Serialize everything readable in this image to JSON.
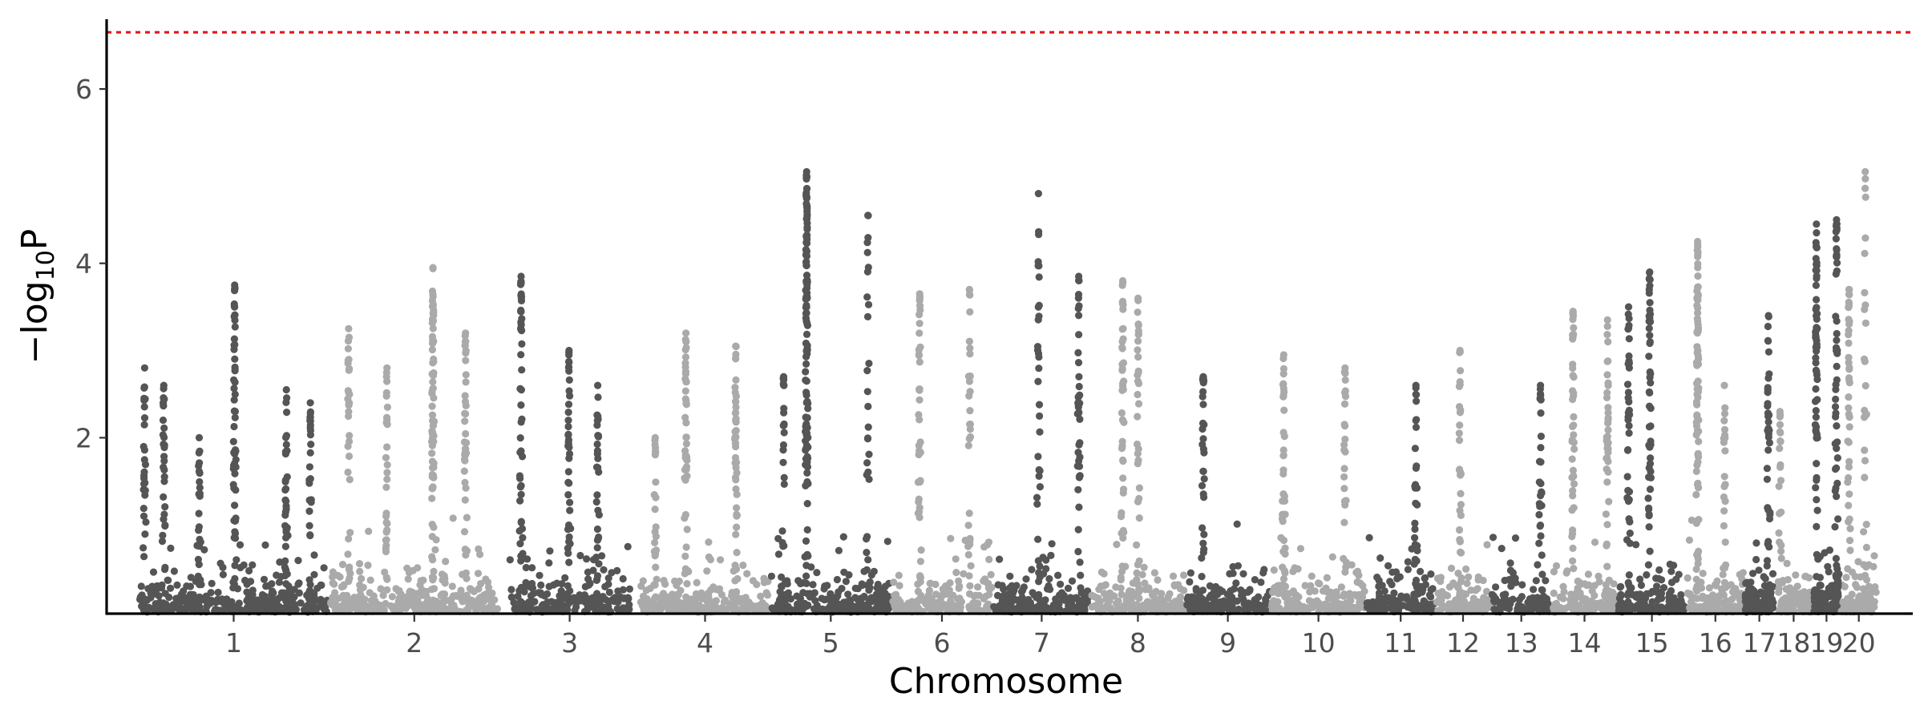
{
  "chart_data": {
    "type": "scatter",
    "subtype": "manhattan",
    "title": "",
    "xlabel": "Chromosome",
    "ylabel_parts": {
      "prefix": "−log",
      "sub": "10",
      "suffix": "P"
    },
    "ylim": [
      0,
      6.8
    ],
    "yticks": [
      2,
      4,
      6
    ],
    "grid": false,
    "legend": "none",
    "colors": {
      "odd": "#555555",
      "even": "#aaaaaa",
      "threshold": "#e41a1c"
    },
    "threshold": 6.65,
    "chromosomes": [
      {
        "label": "1",
        "start": 0.0,
        "end": 100.0
      },
      {
        "label": "2",
        "start": 100.0,
        "end": 188.5
      },
      {
        "label": "3",
        "start": 193.5,
        "end": 257.2
      },
      {
        "label": "4",
        "start": 262.0,
        "end": 330.0
      },
      {
        "label": "5",
        "start": 330.0,
        "end": 393.2
      },
      {
        "label": "6",
        "start": 393.2,
        "end": 446.1
      },
      {
        "label": "7",
        "start": 446.1,
        "end": 497.3
      },
      {
        "label": "8",
        "start": 497.3,
        "end": 546.5
      },
      {
        "label": "9",
        "start": 546.5,
        "end": 591.2
      },
      {
        "label": "10",
        "start": 591.2,
        "end": 641.0
      },
      {
        "label": "11",
        "start": 641.0,
        "end": 677.1
      },
      {
        "label": "12",
        "start": 677.1,
        "end": 706.1
      },
      {
        "label": "13",
        "start": 706.1,
        "end": 737.9
      },
      {
        "label": "14",
        "start": 737.9,
        "end": 772.1
      },
      {
        "label": "15",
        "start": 772.1,
        "end": 808.2
      },
      {
        "label": "16",
        "start": 808.2,
        "end": 838.4
      },
      {
        "label": "17",
        "start": 838.4,
        "end": 854.1
      },
      {
        "label": "18",
        "start": 854.1,
        "end": 874.2
      },
      {
        "label": "19",
        "start": 874.2,
        "end": 888.4
      },
      {
        "label": "20",
        "start": 888.4,
        "end": 907.9
      }
    ],
    "peaks": [
      {
        "x": 3.5,
        "y": 2.8,
        "n": 28
      },
      {
        "x": 13.5,
        "y": 2.6,
        "n": 30
      },
      {
        "x": 32.0,
        "y": 2.0,
        "n": 20
      },
      {
        "x": 50.5,
        "y": 3.75,
        "n": 60
      },
      {
        "x": 77.5,
        "y": 2.55,
        "n": 35
      },
      {
        "x": 90.0,
        "y": 2.4,
        "n": 30
      },
      {
        "x": 110.0,
        "y": 3.25,
        "n": 30
      },
      {
        "x": 130.0,
        "y": 2.8,
        "n": 30
      },
      {
        "x": 154.0,
        "y": 3.95,
        "n": 70
      },
      {
        "x": 171.0,
        "y": 3.2,
        "n": 40
      },
      {
        "x": 200.0,
        "y": 3.85,
        "n": 45
      },
      {
        "x": 225.0,
        "y": 3.0,
        "n": 40
      },
      {
        "x": 240.0,
        "y": 2.6,
        "n": 30
      },
      {
        "x": 270.0,
        "y": 2.0,
        "n": 20
      },
      {
        "x": 286.0,
        "y": 3.2,
        "n": 40
      },
      {
        "x": 312.0,
        "y": 3.05,
        "n": 45
      },
      {
        "x": 337.0,
        "y": 2.7,
        "n": 25
      },
      {
        "x": 349.0,
        "y": 5.05,
        "n": 120
      },
      {
        "x": 381.0,
        "y": 4.55,
        "n": 25
      },
      {
        "x": 408.0,
        "y": 3.65,
        "n": 40
      },
      {
        "x": 434.0,
        "y": 3.7,
        "n": 30
      },
      {
        "x": 470.0,
        "y": 4.8,
        "n": 30
      },
      {
        "x": 491.0,
        "y": 3.85,
        "n": 40
      },
      {
        "x": 514.0,
        "y": 3.8,
        "n": 40
      },
      {
        "x": 522.0,
        "y": 3.6,
        "n": 35
      },
      {
        "x": 556.0,
        "y": 2.7,
        "n": 30
      },
      {
        "x": 598.0,
        "y": 2.95,
        "n": 35
      },
      {
        "x": 630.0,
        "y": 2.8,
        "n": 25
      },
      {
        "x": 667.0,
        "y": 2.6,
        "n": 30
      },
      {
        "x": 690.0,
        "y": 3.0,
        "n": 35
      },
      {
        "x": 732.0,
        "y": 2.6,
        "n": 25
      },
      {
        "x": 749.0,
        "y": 3.45,
        "n": 40
      },
      {
        "x": 767.0,
        "y": 3.35,
        "n": 40
      },
      {
        "x": 778.0,
        "y": 3.5,
        "n": 40
      },
      {
        "x": 789.0,
        "y": 3.9,
        "n": 50
      },
      {
        "x": 814.0,
        "y": 4.25,
        "n": 80
      },
      {
        "x": 828.0,
        "y": 2.6,
        "n": 25
      },
      {
        "x": 851.0,
        "y": 3.4,
        "n": 40
      },
      {
        "x": 857.0,
        "y": 2.3,
        "n": 20
      },
      {
        "x": 876.0,
        "y": 4.45,
        "n": 60
      },
      {
        "x": 886.5,
        "y": 4.5,
        "n": 55
      },
      {
        "x": 893.0,
        "y": 3.7,
        "n": 40
      },
      {
        "x": 901.5,
        "y": 5.05,
        "n": 25
      }
    ]
  }
}
